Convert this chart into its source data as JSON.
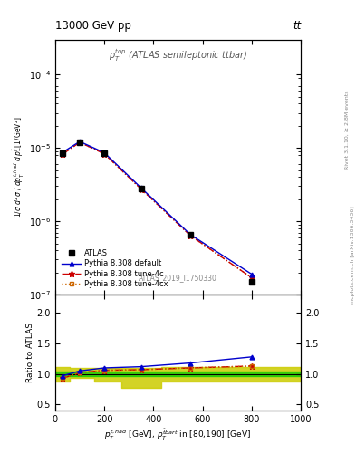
{
  "title_top": "13000 GeV pp",
  "title_right": "tt",
  "annotation": "ATLAS_2019_I1750330",
  "watermark": "mcplots.cern.ch [arXiv:1306.3436]",
  "rivet_label": "Rivet 3.1.10, ≥ 2.8M events",
  "plot_label": "$p_T^{top}$ (ATLAS semileptonic ttbar)",
  "x_data": [
    30,
    100,
    200,
    350,
    550,
    800
  ],
  "atlas_y": [
    8.5e-06,
    1.2e-05,
    8.5e-06,
    2.8e-06,
    6.5e-07,
    1.5e-07
  ],
  "pythia_default_y": [
    8.7e-06,
    1.22e-05,
    8.6e-06,
    2.85e-06,
    6.6e-07,
    1.9e-07
  ],
  "pythia_tune4c_y": [
    8.2e-06,
    1.19e-05,
    8.3e-06,
    2.75e-06,
    6.4e-07,
    1.7e-07
  ],
  "pythia_tune4cx_y": [
    8.2e-06,
    1.19e-05,
    8.3e-06,
    2.75e-06,
    6.4e-07,
    1.7e-07
  ],
  "ratio_x": [
    30,
    100,
    200,
    350,
    550,
    800
  ],
  "ratio_default": [
    0.97,
    1.05,
    1.1,
    1.12,
    1.18,
    1.28
  ],
  "ratio_tune4c": [
    0.93,
    1.02,
    1.06,
    1.07,
    1.1,
    1.13
  ],
  "ratio_tune4cx": [
    0.93,
    1.02,
    1.06,
    1.07,
    1.1,
    1.13
  ],
  "yellow_band_x": [
    0,
    60,
    60,
    160,
    160,
    270,
    270,
    430,
    430,
    670,
    670,
    1000
  ],
  "yellow_band_lo": [
    0.88,
    0.88,
    0.93,
    0.93,
    0.88,
    0.88,
    0.78,
    0.78,
    0.88,
    0.88,
    0.88,
    0.88
  ],
  "yellow_band_hi": [
    1.12,
    1.12,
    1.1,
    1.1,
    1.1,
    1.1,
    1.1,
    1.1,
    1.12,
    1.12,
    1.12,
    1.12
  ],
  "color_atlas": "#000000",
  "color_default": "#0000cc",
  "color_tune4c": "#cc0000",
  "color_tune4cx": "#cc6600",
  "color_green": "#00cc00",
  "color_yellow": "#cccc00",
  "xlim": [
    0,
    1000
  ],
  "ylim_main": [
    1e-07,
    0.0003
  ],
  "ylim_ratio": [
    0.4,
    2.3
  ]
}
